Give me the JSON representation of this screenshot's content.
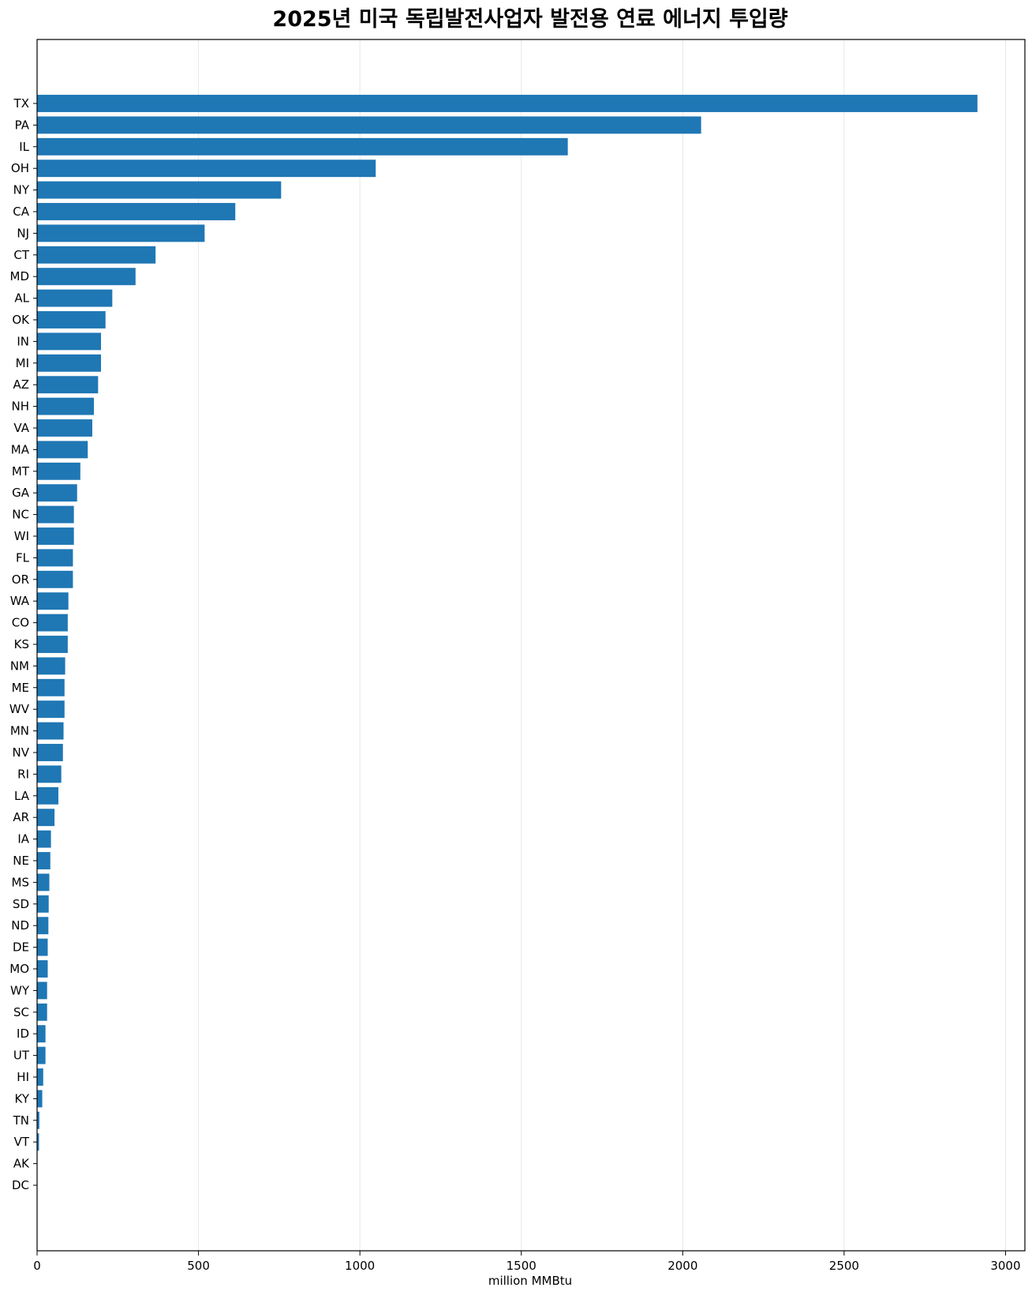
{
  "chart_data": {
    "type": "bar",
    "orientation": "horizontal",
    "title": "2025년 미국 독립발전사업자 발전용 연료 에너지 투입량",
    "xlabel": "million MMBtu",
    "ylabel": "",
    "xlim": [
      0,
      3060
    ],
    "xticks": [
      0,
      500,
      1000,
      1500,
      2000,
      2500,
      3000
    ],
    "xgrid": true,
    "bar_color": "#1f77b4",
    "categories": [
      "TX",
      "PA",
      "IL",
      "OH",
      "NY",
      "CA",
      "NJ",
      "CT",
      "MD",
      "AL",
      "OK",
      "IN",
      "MI",
      "AZ",
      "NH",
      "VA",
      "MA",
      "MT",
      "GA",
      "NC",
      "WI",
      "FL",
      "OR",
      "WA",
      "CO",
      "KS",
      "NM",
      "ME",
      "WV",
      "MN",
      "NV",
      "RI",
      "LA",
      "AR",
      "IA",
      "NE",
      "MS",
      "SD",
      "ND",
      "DE",
      "MO",
      "WY",
      "SC",
      "ID",
      "UT",
      "HI",
      "KY",
      "TN",
      "VT",
      "AK",
      "DC"
    ],
    "values": [
      2913,
      2057,
      1644,
      1049,
      756,
      614,
      519,
      367,
      305,
      233,
      212,
      198,
      198,
      189,
      176,
      171,
      157,
      134,
      124,
      114,
      114,
      111,
      111,
      97,
      95,
      95,
      87,
      85,
      85,
      82,
      80,
      75,
      66,
      54,
      43,
      41,
      38,
      36,
      35,
      33,
      33,
      31,
      31,
      26,
      26,
      19,
      16,
      7,
      6,
      1,
      0.5
    ]
  }
}
